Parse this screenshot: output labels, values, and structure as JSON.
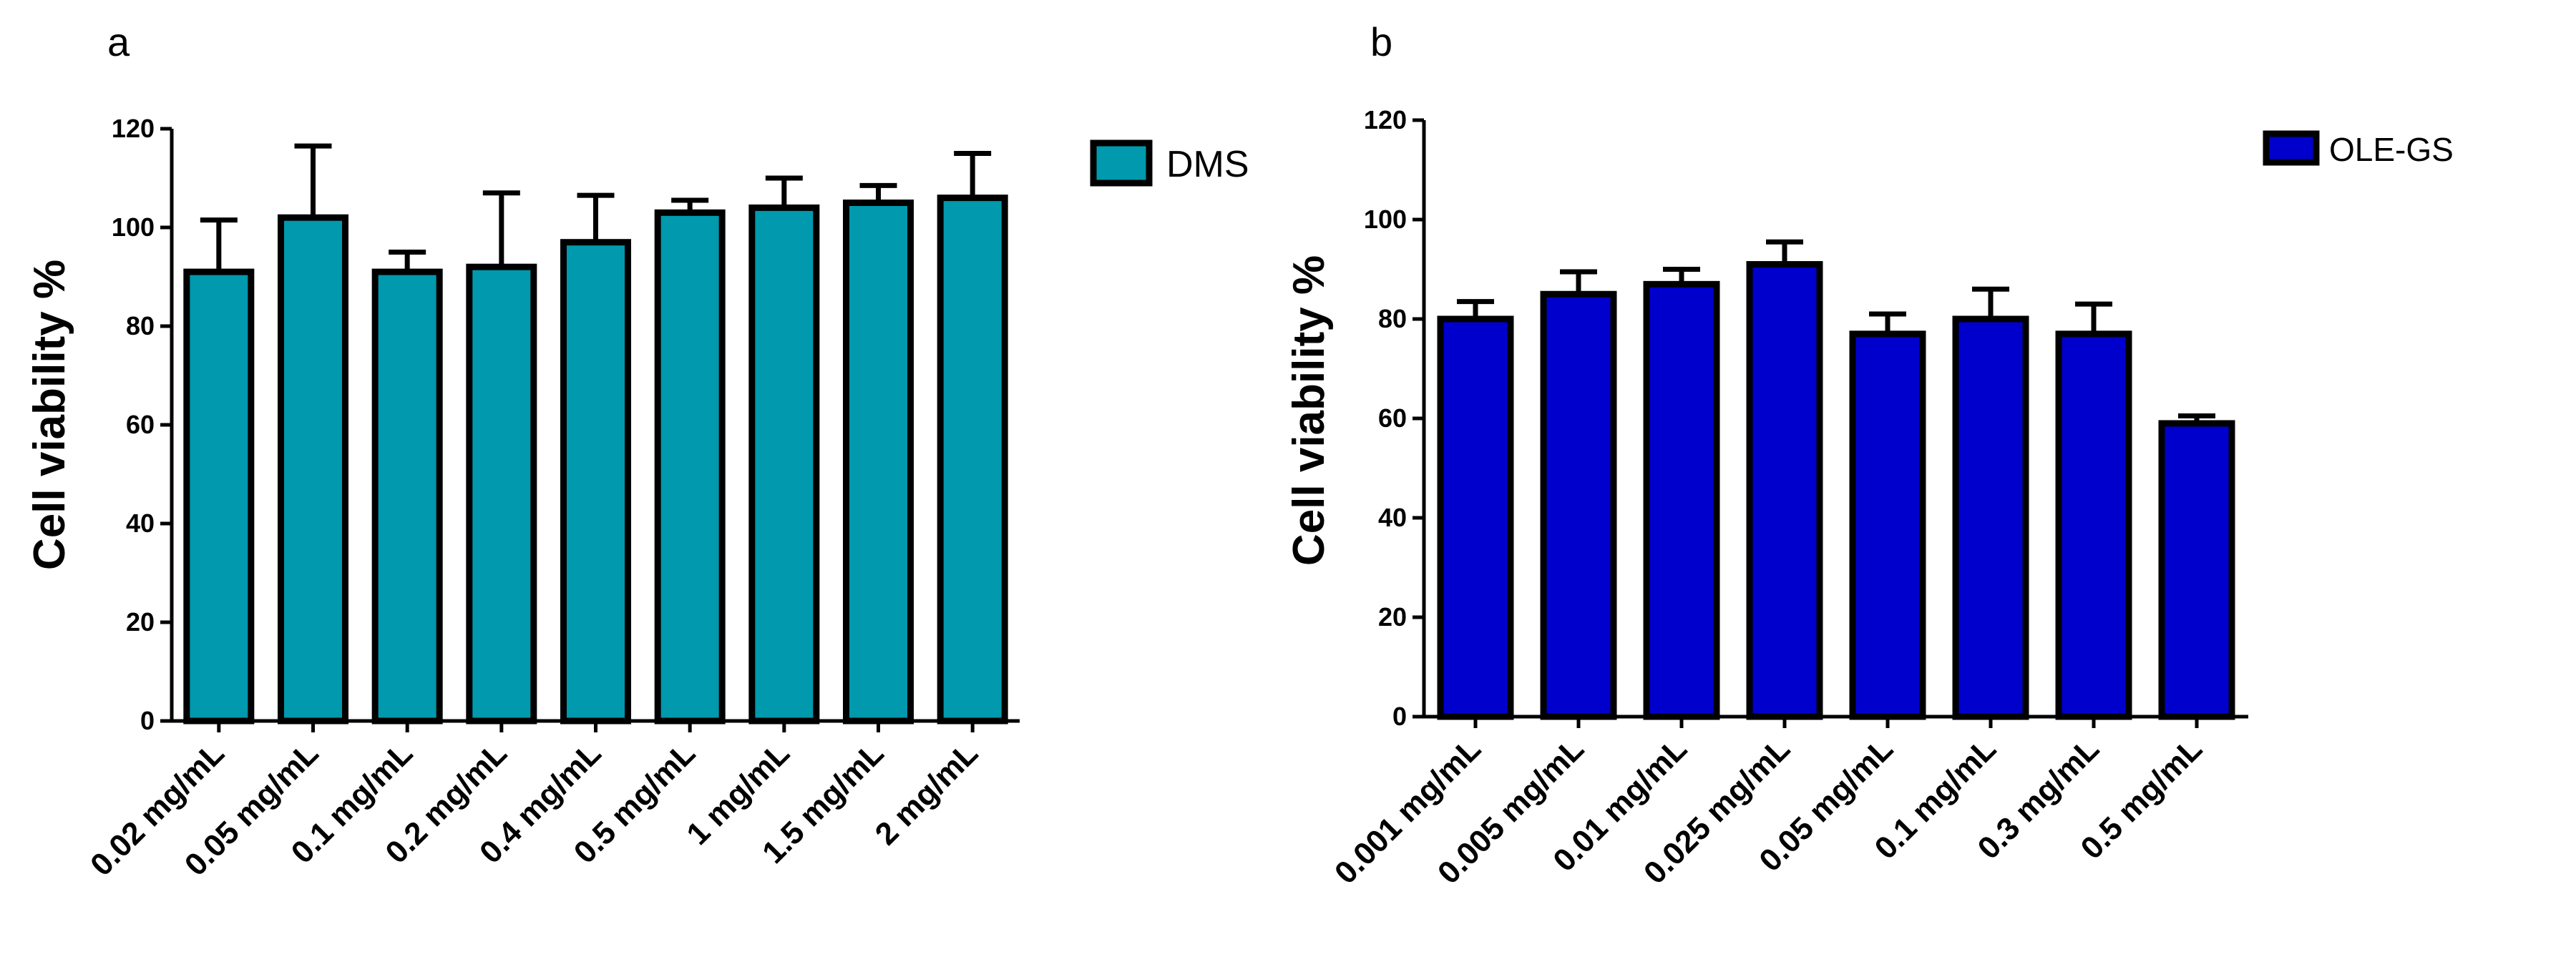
{
  "chart_data": [
    {
      "panel": "a",
      "type": "bar",
      "ylabel": "Cell viability %",
      "xlabel": "",
      "ylim": [
        0,
        120
      ],
      "yticks": [
        0,
        20,
        40,
        60,
        80,
        100,
        120
      ],
      "grid": false,
      "legend_position": "top-right",
      "legend_label": "DMS",
      "bar_color": "#0099AD",
      "categories": [
        "0.02 mg/mL",
        "0.05 mg/mL",
        "0.1 mg/mL",
        "0.2 mg/mL",
        "0.4 mg/mL",
        "0.5 mg/mL",
        "1 mg/mL",
        "1.5 mg/mL",
        "2 mg/mL"
      ],
      "values": [
        91,
        102,
        91,
        92,
        97,
        103,
        104,
        105,
        106
      ],
      "errors": [
        10.5,
        14.5,
        4,
        15,
        9.5,
        2.5,
        6,
        3.5,
        9
      ]
    },
    {
      "panel": "b",
      "type": "bar",
      "ylabel": "Cell viability %",
      "xlabel": "",
      "ylim": [
        0,
        120
      ],
      "yticks": [
        0,
        20,
        40,
        60,
        80,
        100,
        120
      ],
      "grid": false,
      "legend_position": "top-right",
      "legend_label": "OLE-GS",
      "bar_color": "#0000CC",
      "categories": [
        "0.001 mg/mL",
        "0.005 mg/mL",
        "0.01 mg/mL",
        "0.025 mg/mL",
        "0.05 mg/mL",
        "0.1 mg/mL",
        "0.3 mg/mL",
        "0.5 mg/mL"
      ],
      "values": [
        80,
        85,
        87,
        91,
        77,
        80,
        77,
        59
      ],
      "errors": [
        3.5,
        4.5,
        3,
        4.5,
        4,
        6,
        6,
        1.5
      ]
    }
  ]
}
